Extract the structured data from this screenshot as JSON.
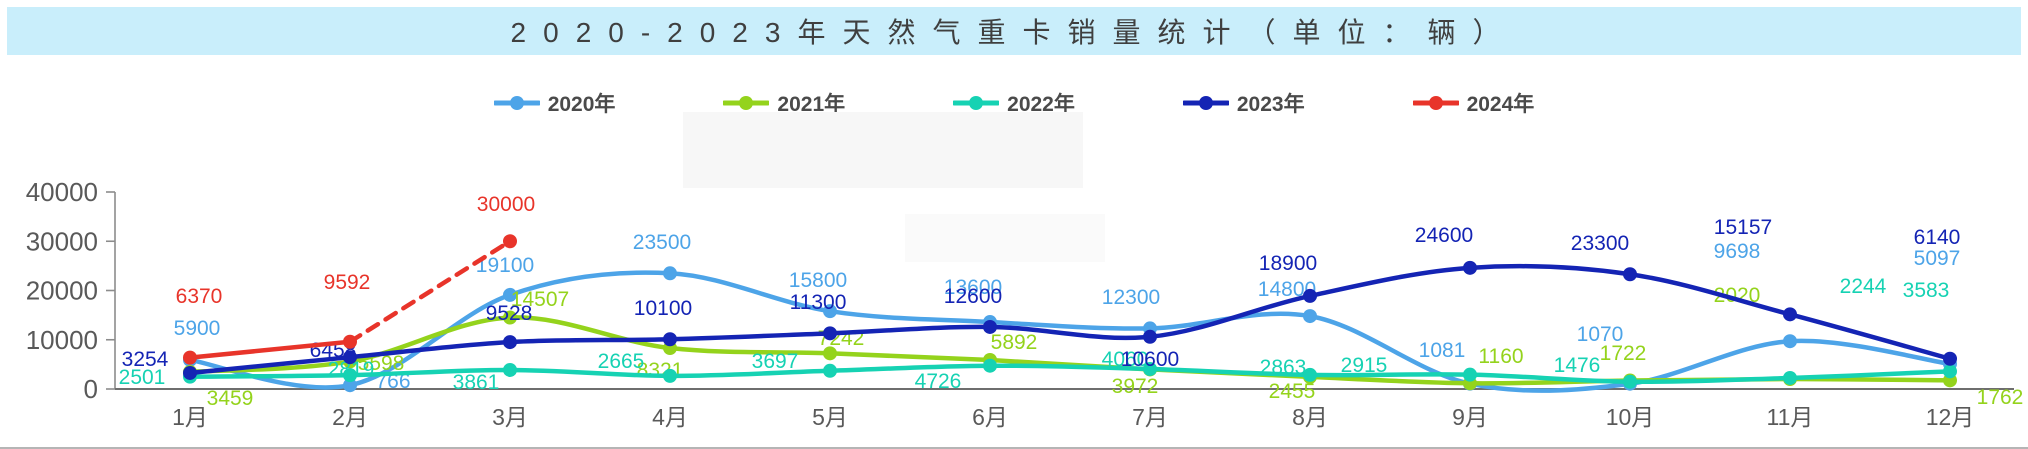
{
  "title": "2020-2023年天然气重卡销量统计（单位：辆）",
  "chart_data": {
    "type": "line",
    "title": "2020-2023年天然气重卡销量统计（单位：辆）",
    "categories": [
      "1月",
      "2月",
      "3月",
      "4月",
      "5月",
      "6月",
      "7月",
      "8月",
      "9月",
      "10月",
      "11月",
      "12月"
    ],
    "series": [
      {
        "name": "2020年",
        "color": "#4da4e8",
        "dashed": false,
        "values": [
          5900,
          766,
          19100,
          23500,
          15800,
          13600,
          12300,
          14800,
          1081,
          1070,
          9698,
          5097
        ]
      },
      {
        "name": "2021年",
        "color": "#94d31c",
        "dashed": false,
        "values": [
          3459,
          5598,
          14507,
          8321,
          7242,
          5892,
          3972,
          2455,
          1160,
          1722,
          2020,
          1762
        ]
      },
      {
        "name": "2022年",
        "color": "#16d2b3",
        "dashed": false,
        "values": [
          2501,
          2819,
          3861,
          2665,
          3697,
          4726,
          4060,
          2863,
          2915,
          1476,
          2244,
          3583
        ]
      },
      {
        "name": "2023年",
        "color": "#1424b4",
        "dashed": false,
        "values": [
          3254,
          6458,
          9528,
          10100,
          11300,
          12600,
          10600,
          18900,
          24600,
          23300,
          15157,
          6140
        ]
      },
      {
        "name": "2024年",
        "color": "#e8342a",
        "dashed": true,
        "values": [
          6370,
          9592,
          30000
        ]
      }
    ],
    "ylim": [
      0,
      40000
    ],
    "yticks": [
      0,
      10000,
      20000,
      30000,
      40000
    ],
    "xlabel": "",
    "ylabel": "",
    "grid": false,
    "legend_position": "top"
  }
}
